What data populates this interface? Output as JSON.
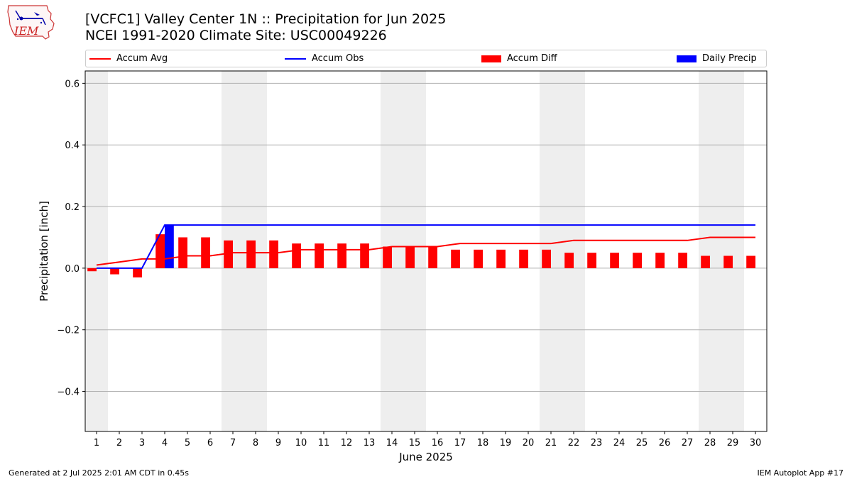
{
  "header": {
    "title_line1": "[VCFC1] Valley Center 1N :: Precipitation for Jun 2025",
    "title_line2": "NCEI 1991-2020 Climate Site: USC00049226",
    "logo_text": "IEM"
  },
  "footer": {
    "generated": "Generated at 2 Jul 2025 2:01 AM CDT in 0.45s",
    "app": "IEM Autoplot App #17"
  },
  "colors": {
    "avg": "#ff0000",
    "obs": "#0000ff",
    "diff": "#ff0000",
    "daily": "#0000ff",
    "weekend": "#eeeeee",
    "grid": "#b0b0b0"
  },
  "chart_data": {
    "type": "bar",
    "xlabel": "June 2025",
    "ylabel": "Precipitation [inch]",
    "ylim": [
      -0.53,
      0.64
    ],
    "yticks": [
      -0.4,
      -0.2,
      0.0,
      0.2,
      0.4,
      0.6
    ],
    "ytick_labels": [
      "−0.4",
      "−0.2",
      "0.0",
      "0.2",
      "0.4",
      "0.6"
    ],
    "grid": "horizontal",
    "legend_position": "top",
    "days": [
      1,
      2,
      3,
      4,
      5,
      6,
      7,
      8,
      9,
      10,
      11,
      12,
      13,
      14,
      15,
      16,
      17,
      18,
      19,
      20,
      21,
      22,
      23,
      24,
      25,
      26,
      27,
      28,
      29,
      30
    ],
    "weekend_days": [
      1,
      7,
      8,
      14,
      15,
      21,
      22,
      28,
      29
    ],
    "series": [
      {
        "name": "Accum Avg",
        "kind": "line",
        "values": [
          0.01,
          0.02,
          0.03,
          0.03,
          0.04,
          0.04,
          0.05,
          0.05,
          0.05,
          0.06,
          0.06,
          0.06,
          0.06,
          0.07,
          0.07,
          0.07,
          0.08,
          0.08,
          0.08,
          0.08,
          0.08,
          0.09,
          0.09,
          0.09,
          0.09,
          0.09,
          0.09,
          0.1,
          0.1,
          0.1
        ]
      },
      {
        "name": "Accum Obs",
        "kind": "line",
        "values": [
          0,
          0,
          0,
          0.14,
          0.14,
          0.14,
          0.14,
          0.14,
          0.14,
          0.14,
          0.14,
          0.14,
          0.14,
          0.14,
          0.14,
          0.14,
          0.14,
          0.14,
          0.14,
          0.14,
          0.14,
          0.14,
          0.14,
          0.14,
          0.14,
          0.14,
          0.14,
          0.14,
          0.14,
          0.14
        ]
      },
      {
        "name": "Accum Diff",
        "kind": "bar",
        "values": [
          -0.01,
          -0.02,
          -0.03,
          0.11,
          0.1,
          0.1,
          0.09,
          0.09,
          0.09,
          0.08,
          0.08,
          0.08,
          0.08,
          0.07,
          0.07,
          0.07,
          0.06,
          0.06,
          0.06,
          0.06,
          0.06,
          0.05,
          0.05,
          0.05,
          0.05,
          0.05,
          0.05,
          0.04,
          0.04,
          0.04
        ]
      },
      {
        "name": "Daily Precip",
        "kind": "bar",
        "values": [
          0,
          0,
          0,
          0.14,
          0,
          0,
          0,
          0,
          0,
          0,
          0,
          0,
          0,
          0,
          0,
          0,
          0,
          0,
          0,
          0,
          0,
          0,
          0,
          0,
          0,
          0,
          0,
          0,
          0,
          0
        ]
      }
    ]
  }
}
